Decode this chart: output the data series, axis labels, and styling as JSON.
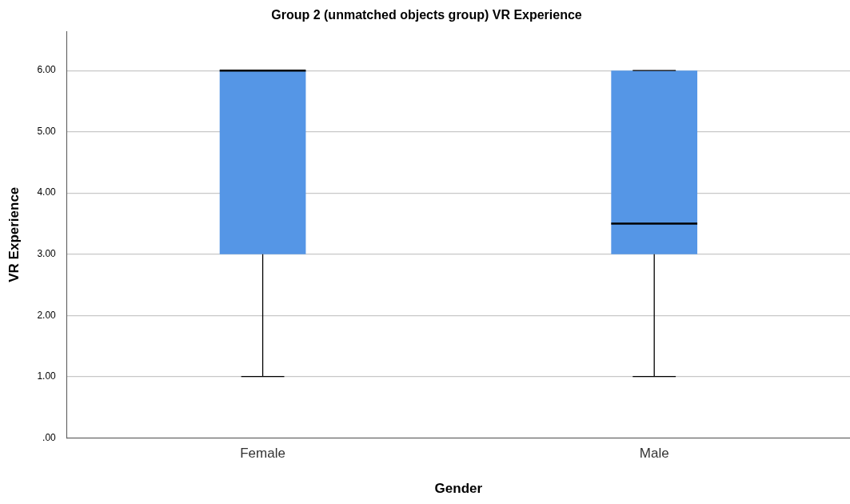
{
  "chart_data": {
    "type": "box",
    "title": "Group 2 (unmatched objects group) VR Experience",
    "xlabel": "Gender",
    "ylabel": "VR Experience",
    "categories": [
      "Female",
      "Male"
    ],
    "color": "#5596e6",
    "boxes": [
      {
        "low": 1,
        "q1": 3,
        "median": 6,
        "q3": 6,
        "high": 6
      },
      {
        "low": 1,
        "q1": 3,
        "median": 3.5,
        "q3": 6,
        "high": 6
      }
    ],
    "ylim": [
      0,
      6.64
    ],
    "yticks": [
      {
        "value": 0,
        "label": ".00"
      },
      {
        "value": 1,
        "label": "1.00"
      },
      {
        "value": 2,
        "label": "2.00"
      },
      {
        "value": 3,
        "label": "3.00"
      },
      {
        "value": 4,
        "label": "4.00"
      },
      {
        "value": 5,
        "label": "5.00"
      },
      {
        "value": 6,
        "label": "6.00"
      }
    ],
    "grid": "y"
  }
}
